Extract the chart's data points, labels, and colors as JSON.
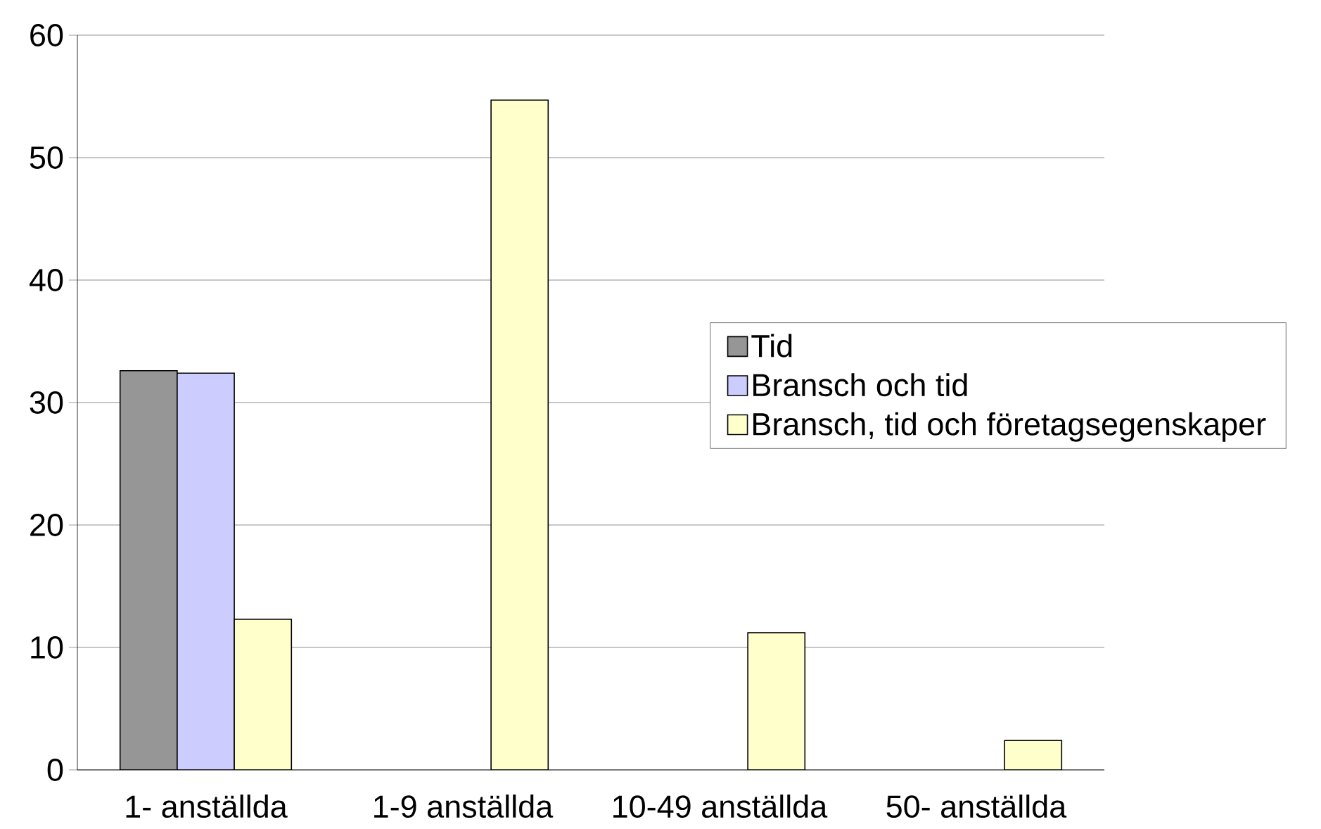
{
  "chart_data": {
    "type": "bar",
    "categories": [
      "1- anställda",
      "1-9 anställda",
      "10-49 anställda",
      "50- anställda"
    ],
    "series": [
      {
        "name": "Tid",
        "color": "#969696",
        "values": [
          32.6,
          null,
          null,
          null
        ]
      },
      {
        "name": "Bransch och tid",
        "color": "#ccccff",
        "values": [
          32.4,
          null,
          null,
          null
        ]
      },
      {
        "name": "Bransch, tid och företagsegenskaper",
        "color": "#ffffcc",
        "values": [
          12.3,
          54.7,
          11.2,
          2.4
        ]
      }
    ],
    "ylim": [
      0,
      60
    ],
    "yticks": [
      0,
      10,
      20,
      30,
      40,
      50,
      60
    ],
    "grid": "y",
    "legend": "right"
  }
}
